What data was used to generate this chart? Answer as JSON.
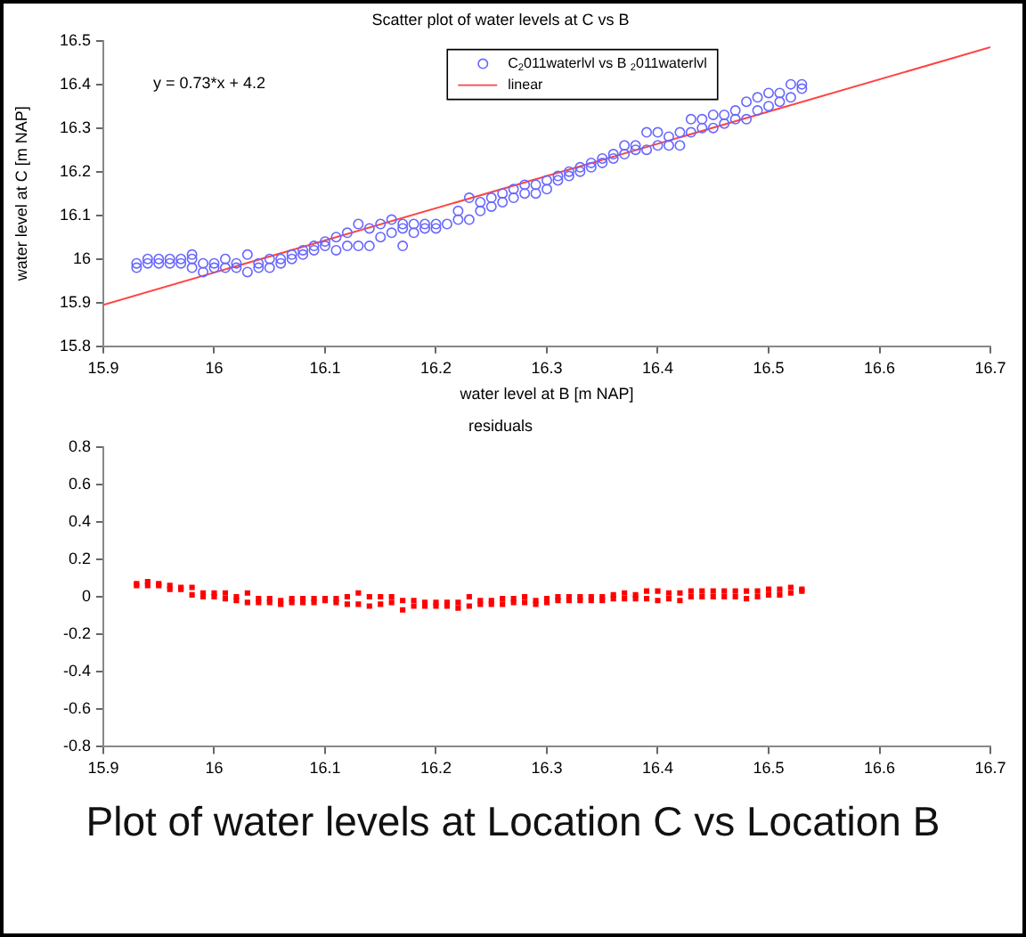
{
  "chart_data": [
    {
      "type": "scatter",
      "title": "Scatter plot of water levels at C vs B",
      "xlabel": "water level at B [m NAP]",
      "ylabel": "water level at C [m NAP]",
      "xlim": [
        15.9,
        16.7
      ],
      "xticks": [
        15.9,
        16,
        16.1,
        16.2,
        16.3,
        16.4,
        16.5,
        16.6,
        16.7
      ],
      "ylim": [
        15.8,
        16.5
      ],
      "yticks": [
        15.8,
        15.9,
        16,
        16.1,
        16.2,
        16.3,
        16.4,
        16.5
      ],
      "grid": false,
      "legend": "top",
      "annotations": [
        "y = 0.73*x + 4.2"
      ],
      "series": [
        {
          "name": "C$_{2}$011waterlvl vs B $_{2}$011waterlvl",
          "marker": "circle",
          "color": "#6666ff",
          "x": [
            15.93,
            15.93,
            15.94,
            15.94,
            15.95,
            15.95,
            15.96,
            15.96,
            15.97,
            15.97,
            15.98,
            15.98,
            15.98,
            15.99,
            15.99,
            16.0,
            16.0,
            16.01,
            16.01,
            16.02,
            16.02,
            16.03,
            16.03,
            16.04,
            16.04,
            16.05,
            16.05,
            16.06,
            16.06,
            16.07,
            16.07,
            16.08,
            16.08,
            16.09,
            16.09,
            16.1,
            16.1,
            16.11,
            16.11,
            16.12,
            16.12,
            16.13,
            16.13,
            16.14,
            16.14,
            16.15,
            16.15,
            16.16,
            16.16,
            16.17,
            16.17,
            16.17,
            16.18,
            16.18,
            16.19,
            16.19,
            16.2,
            16.2,
            16.21,
            16.22,
            16.22,
            16.23,
            16.23,
            16.24,
            16.24,
            16.25,
            16.25,
            16.26,
            16.26,
            16.27,
            16.27,
            16.28,
            16.28,
            16.29,
            16.29,
            16.3,
            16.3,
            16.31,
            16.31,
            16.32,
            16.32,
            16.33,
            16.33,
            16.34,
            16.34,
            16.35,
            16.35,
            16.36,
            16.36,
            16.37,
            16.37,
            16.38,
            16.38,
            16.39,
            16.39,
            16.4,
            16.4,
            16.41,
            16.41,
            16.42,
            16.42,
            16.43,
            16.43,
            16.44,
            16.44,
            16.45,
            16.45,
            16.46,
            16.46,
            16.47,
            16.47,
            16.48,
            16.48,
            16.49,
            16.49,
            16.5,
            16.5,
            16.51,
            16.51,
            16.52,
            16.52,
            16.53,
            16.53
          ],
          "values": [
            15.98,
            15.99,
            15.99,
            16.0,
            15.99,
            16.0,
            15.99,
            16.0,
            15.99,
            16.0,
            15.98,
            16.0,
            16.01,
            15.97,
            15.99,
            15.98,
            15.99,
            15.98,
            16.0,
            15.98,
            15.99,
            15.97,
            16.01,
            15.98,
            15.99,
            15.98,
            16.0,
            15.99,
            16.0,
            16.0,
            16.01,
            16.01,
            16.02,
            16.02,
            16.03,
            16.03,
            16.04,
            16.02,
            16.05,
            16.03,
            16.06,
            16.03,
            16.08,
            16.03,
            16.07,
            16.05,
            16.08,
            16.06,
            16.09,
            16.03,
            16.07,
            16.08,
            16.06,
            16.08,
            16.07,
            16.08,
            16.07,
            16.08,
            16.08,
            16.09,
            16.11,
            16.09,
            16.14,
            16.11,
            16.13,
            16.12,
            16.14,
            16.13,
            16.15,
            16.14,
            16.16,
            16.15,
            16.17,
            16.15,
            16.17,
            16.16,
            16.18,
            16.18,
            16.19,
            16.19,
            16.2,
            16.2,
            16.21,
            16.21,
            16.22,
            16.22,
            16.23,
            16.23,
            16.24,
            16.24,
            16.26,
            16.25,
            16.26,
            16.25,
            16.29,
            16.26,
            16.29,
            16.26,
            16.28,
            16.26,
            16.29,
            16.29,
            16.32,
            16.3,
            16.32,
            16.3,
            16.33,
            16.31,
            16.33,
            16.32,
            16.34,
            16.32,
            16.36,
            16.34,
            16.37,
            16.35,
            16.38,
            16.36,
            16.38,
            16.37,
            16.4,
            16.39,
            16.4
          ]
        },
        {
          "name": "linear",
          "type": "line",
          "marker": "none",
          "color": "#ff4444",
          "x": [
            15.9,
            16.7
          ],
          "values": [
            15.895,
            16.485
          ]
        }
      ]
    },
    {
      "type": "scatter",
      "title": "residuals",
      "xlim": [
        15.9,
        16.7
      ],
      "xticks": [
        15.9,
        16,
        16.1,
        16.2,
        16.3,
        16.4,
        16.5,
        16.6,
        16.7
      ],
      "ylim": [
        -0.8,
        0.8
      ],
      "yticks": [
        -0.8,
        -0.6,
        -0.4,
        -0.2,
        0,
        0.2,
        0.4,
        0.6,
        0.8
      ],
      "grid": false,
      "annotations": [
        "Plot of water levels at Location C vs Location B"
      ],
      "series": [
        {
          "marker": "square",
          "color": "#ff0000",
          "x": [
            15.93,
            15.93,
            15.94,
            15.94,
            15.95,
            15.95,
            15.96,
            15.96,
            15.97,
            15.97,
            15.98,
            15.98,
            15.99,
            15.99,
            16.0,
            16.0,
            16.01,
            16.01,
            16.02,
            16.02,
            16.03,
            16.03,
            16.04,
            16.04,
            16.05,
            16.05,
            16.06,
            16.06,
            16.07,
            16.07,
            16.08,
            16.08,
            16.09,
            16.09,
            16.1,
            16.1,
            16.11,
            16.11,
            16.12,
            16.12,
            16.13,
            16.13,
            16.14,
            16.14,
            16.15,
            16.15,
            16.16,
            16.16,
            16.17,
            16.17,
            16.18,
            16.18,
            16.19,
            16.19,
            16.2,
            16.2,
            16.21,
            16.21,
            16.22,
            16.22,
            16.23,
            16.23,
            16.24,
            16.24,
            16.25,
            16.25,
            16.26,
            16.26,
            16.27,
            16.27,
            16.28,
            16.28,
            16.29,
            16.29,
            16.3,
            16.3,
            16.31,
            16.31,
            16.32,
            16.32,
            16.33,
            16.33,
            16.34,
            16.34,
            16.35,
            16.35,
            16.36,
            16.36,
            16.37,
            16.37,
            16.38,
            16.38,
            16.39,
            16.39,
            16.4,
            16.4,
            16.41,
            16.41,
            16.42,
            16.42,
            16.43,
            16.43,
            16.44,
            16.44,
            16.45,
            16.45,
            16.46,
            16.46,
            16.47,
            16.47,
            16.48,
            16.48,
            16.49,
            16.49,
            16.5,
            16.5,
            16.51,
            16.51,
            16.52,
            16.52,
            16.53,
            16.53
          ],
          "values": [
            0.06,
            0.07,
            0.06,
            0.08,
            0.06,
            0.07,
            0.04,
            0.06,
            0.04,
            0.05,
            0.01,
            0.05,
            0.0,
            0.02,
            0.0,
            0.02,
            -0.01,
            0.02,
            -0.02,
            0.0,
            -0.03,
            0.02,
            -0.03,
            -0.01,
            -0.03,
            -0.01,
            -0.04,
            -0.02,
            -0.03,
            -0.01,
            -0.03,
            -0.01,
            -0.03,
            -0.01,
            -0.02,
            -0.01,
            -0.03,
            -0.01,
            -0.04,
            0.0,
            -0.04,
            0.02,
            -0.05,
            0.0,
            -0.04,
            0.0,
            -0.03,
            0.0,
            -0.07,
            -0.02,
            -0.05,
            -0.02,
            -0.05,
            -0.03,
            -0.05,
            -0.03,
            -0.05,
            -0.03,
            -0.06,
            -0.03,
            -0.05,
            0.0,
            -0.04,
            -0.02,
            -0.04,
            -0.02,
            -0.04,
            -0.01,
            -0.03,
            -0.01,
            -0.03,
            0.0,
            -0.04,
            -0.02,
            -0.03,
            -0.01,
            -0.02,
            0.0,
            -0.02,
            0.0,
            -0.02,
            0.0,
            -0.02,
            0.0,
            -0.02,
            0.0,
            -0.01,
            0.01,
            -0.01,
            0.02,
            -0.01,
            0.01,
            -0.01,
            0.03,
            -0.02,
            0.03,
            -0.01,
            0.02,
            -0.02,
            0.02,
            0.0,
            0.03,
            0.0,
            0.03,
            0.0,
            0.03,
            0.0,
            0.03,
            0.0,
            0.03,
            -0.01,
            0.03,
            0.0,
            0.03,
            0.01,
            0.04,
            0.01,
            0.04,
            0.02,
            0.05,
            0.03,
            0.04
          ]
        }
      ]
    }
  ]
}
